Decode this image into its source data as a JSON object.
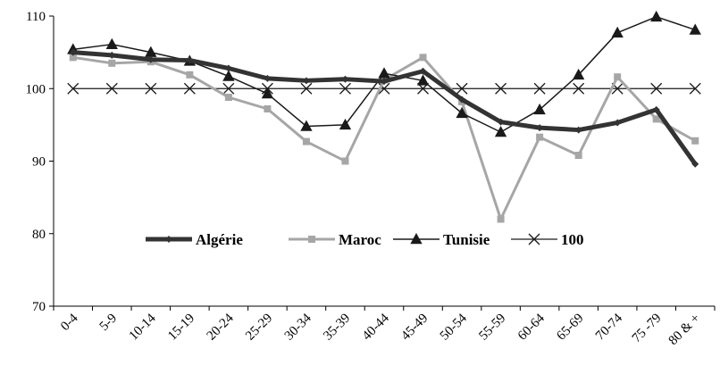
{
  "chart_data": {
    "type": "line",
    "categories": [
      "0-4",
      "5-9",
      "10-14",
      "15-19",
      "20-24",
      "25-29",
      "30-34",
      "35-39",
      "40-44",
      "45-49",
      "50-54",
      "55-59",
      "60-64",
      "65-69",
      "70-74",
      "75 -79",
      "80 & +"
    ],
    "ylim": [
      70,
      110
    ],
    "yticks": [
      "70",
      "80",
      "90",
      "100",
      "110"
    ],
    "grid": false,
    "legend_position": "center",
    "series": [
      {
        "name": "Algérie",
        "color": "#333333",
        "marker": "diamond",
        "values": [
          105.0,
          104.6,
          104.0,
          103.9,
          102.8,
          101.4,
          101.1,
          101.3,
          101.0,
          102.4,
          98.5,
          95.4,
          94.6,
          94.3,
          95.3,
          97.1,
          89.6
        ]
      },
      {
        "name": "Maroc",
        "color": "#a6a6a6",
        "marker": "square",
        "values": [
          104.3,
          103.5,
          103.7,
          101.9,
          98.8,
          97.2,
          92.7,
          90.0,
          101.2,
          104.3,
          98.2,
          82.0,
          93.3,
          90.8,
          101.6,
          95.8,
          92.8
        ]
      },
      {
        "name": "Tunisie",
        "color": "#1a1a1a",
        "marker": "triangle",
        "values": [
          105.4,
          106.1,
          105.0,
          103.8,
          101.7,
          99.3,
          94.8,
          95.0,
          102.1,
          101.1,
          96.6,
          94.0,
          97.1,
          101.9,
          107.7,
          109.9,
          108.1
        ]
      },
      {
        "name": "100",
        "color": "#1a1a1a",
        "marker": "x",
        "values": [
          100,
          100,
          100,
          100,
          100,
          100,
          100,
          100,
          100,
          100,
          100,
          100,
          100,
          100,
          100,
          100,
          100
        ]
      }
    ]
  }
}
